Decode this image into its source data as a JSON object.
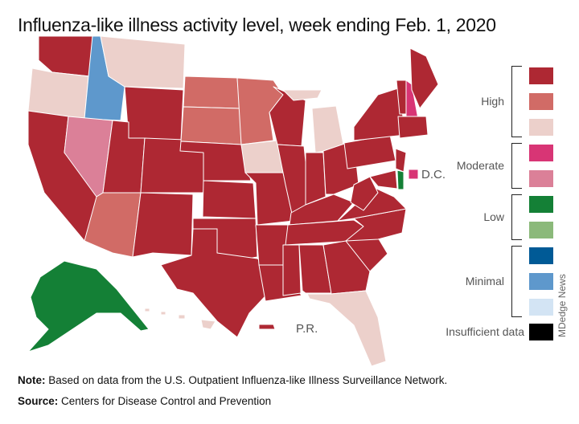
{
  "title": "Influenza-like illness activity level, week ending Feb. 1, 2020",
  "colors": {
    "high_1": "#ae2833",
    "high_2": "#d16b66",
    "high_3": "#ecd0cb",
    "moderate_1": "#d83575",
    "moderate_2": "#db8098",
    "low_1": "#148036",
    "low_2": "#8bb97a",
    "minimal_1": "#005a96",
    "minimal_2": "#5e98cc",
    "minimal_3": "#d3e4f4",
    "insufficient": "#000000"
  },
  "legend": {
    "groups": [
      {
        "label": "High",
        "levels": [
          "high_1",
          "high_2",
          "high_3"
        ]
      },
      {
        "label": "Moderate",
        "levels": [
          "moderate_1",
          "moderate_2"
        ]
      },
      {
        "label": "Low",
        "levels": [
          "low_1",
          "low_2"
        ]
      },
      {
        "label": "Minimal",
        "levels": [
          "minimal_1",
          "minimal_2",
          "minimal_3"
        ]
      }
    ],
    "insufficient_label": "Insufficient data"
  },
  "states": {
    "WA": "high_1",
    "OR": "high_3",
    "CA": "high_1",
    "ID": "minimal_2",
    "NV": "moderate_2",
    "MT": "high_3",
    "WY": "high_1",
    "UT": "high_1",
    "AZ": "high_2",
    "CO": "high_1",
    "NM": "high_1",
    "ND": "high_2",
    "SD": "high_2",
    "NE": "high_1",
    "KS": "high_1",
    "OK": "high_1",
    "TX": "high_1",
    "MN": "high_2",
    "IA": "high_3",
    "MO": "high_1",
    "AR": "high_1",
    "LA": "high_1",
    "WI": "high_1",
    "IL": "high_1",
    "MI": "high_3",
    "MI_UP": "high_3",
    "IN": "high_1",
    "OH": "high_1",
    "KY": "high_1",
    "TN": "high_1",
    "MS": "high_1",
    "AL": "high_1",
    "GA": "high_1",
    "FL": "high_3",
    "SC": "high_1",
    "NC": "high_1",
    "VA": "high_1",
    "WV": "high_1",
    "PA": "high_1",
    "NY": "high_1",
    "MD": "high_1",
    "DE": "low_1",
    "NJ": "high_1",
    "VT": "high_1",
    "NH": "moderate_1",
    "ME": "high_1",
    "MA_CT_RI": "high_1",
    "AK": "low_1",
    "HI": "high_3",
    "PR": "high_1",
    "DC": "moderate_1"
  },
  "labels": {
    "dc": "D.C.",
    "pr": "P.R."
  },
  "credit": "MDedge News",
  "note": {
    "label": "Note:",
    "text": " Based on data from the U.S. Outpatient Influenza-like Illness Surveillance Network."
  },
  "source": {
    "label": "Source:",
    "text": " Centers for Disease Control and Prevention"
  }
}
